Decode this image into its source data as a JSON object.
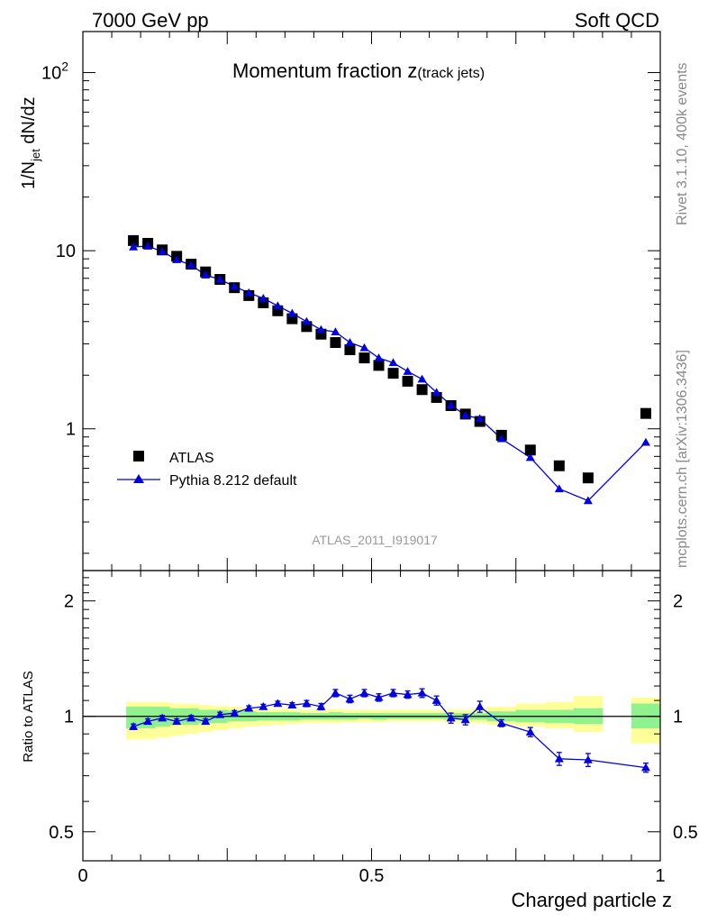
{
  "header": {
    "energy": "7000 GeV pp",
    "category": "Soft QCD"
  },
  "side_text": {
    "rivet": "Rivet 3.1.10,  400k events",
    "mcplots": "mcplots.cern.ch [arXiv:1306.3436]"
  },
  "colors": {
    "mc": "#0000e0",
    "data": "#000000",
    "band_inner": "#8ff28f",
    "band_outer": "#ffff99",
    "watermark": "#999999"
  },
  "chart_data": [
    {
      "type": "scatter",
      "title_main": "Momentum fraction ",
      "title_var": "z",
      "title_sub": "(track jets)",
      "analysis_id": "ATLAS_2011_I919017",
      "ylabel": "1/N_jet dN/dz",
      "yscale": "log",
      "ylim": [
        0.16,
        170
      ],
      "xlim": [
        0,
        1
      ],
      "y_ticks": [
        {
          "value": 1,
          "label": "1"
        },
        {
          "value": 10,
          "label": "10"
        },
        {
          "value": 100,
          "label": "10",
          "exp": "2"
        }
      ],
      "legend": {
        "position": "bottom-left",
        "data_label": "ATLAS",
        "mc_label": "Pythia 8.212 default"
      },
      "series": [
        {
          "name": "ATLAS",
          "marker": "square",
          "x": [
            0.0875,
            0.1125,
            0.1375,
            0.1625,
            0.1875,
            0.2125,
            0.2375,
            0.2625,
            0.2875,
            0.3125,
            0.3375,
            0.3625,
            0.3875,
            0.4125,
            0.4375,
            0.4625,
            0.4875,
            0.5125,
            0.5375,
            0.5625,
            0.5875,
            0.6125,
            0.6375,
            0.6625,
            0.6875,
            0.725,
            0.775,
            0.825,
            0.875,
            0.975
          ],
          "y": [
            11.4,
            11.0,
            10.1,
            9.3,
            8.4,
            7.6,
            6.9,
            6.2,
            5.6,
            5.1,
            4.6,
            4.15,
            3.75,
            3.4,
            3.05,
            2.78,
            2.5,
            2.27,
            2.05,
            1.85,
            1.66,
            1.5,
            1.35,
            1.21,
            1.1,
            0.92,
            0.76,
            0.62,
            0.53,
            1.22
          ]
        },
        {
          "name": "Pythia 8.212 default",
          "marker": "triangle",
          "x": [
            0.0875,
            0.1125,
            0.1375,
            0.1625,
            0.1875,
            0.2125,
            0.2375,
            0.2625,
            0.2875,
            0.3125,
            0.3375,
            0.3625,
            0.3875,
            0.4125,
            0.4375,
            0.4625,
            0.4875,
            0.5125,
            0.5375,
            0.5625,
            0.5875,
            0.6125,
            0.6375,
            0.6625,
            0.6875,
            0.725,
            0.775,
            0.825,
            0.875,
            0.975
          ],
          "y": [
            10.5,
            10.6,
            9.9,
            8.9,
            8.3,
            7.3,
            6.9,
            6.3,
            5.8,
            5.4,
            4.9,
            4.45,
            4.0,
            3.6,
            3.5,
            3.05,
            2.85,
            2.5,
            2.35,
            2.1,
            1.9,
            1.6,
            1.36,
            1.19,
            1.14,
            0.88,
            0.69,
            0.46,
            0.395,
            0.84
          ],
          "yerr_ratio": [
            0,
            0,
            0,
            0,
            0,
            0,
            0,
            0,
            0,
            0,
            0,
            0,
            0,
            0,
            0,
            0,
            0,
            0,
            0,
            0,
            0,
            0,
            0.02,
            0.02,
            0.02,
            0.015,
            0.02,
            0.03,
            0.03,
            0.015
          ]
        }
      ]
    },
    {
      "type": "scatter",
      "ylabel": "Ratio to ATLAS",
      "xlabel": "Charged particle z",
      "yscale": "log",
      "ylim": [
        0.42,
        2.4
      ],
      "xlim": [
        0,
        1
      ],
      "y_ticks": [
        {
          "value": 0.5,
          "label": "0.5"
        },
        {
          "value": 1,
          "label": "1"
        },
        {
          "value": 2,
          "label": "2"
        }
      ],
      "x_ticks": [
        {
          "value": 0,
          "label": "0"
        },
        {
          "value": 0.5,
          "label": "0.5"
        },
        {
          "value": 1,
          "label": "1"
        }
      ],
      "bands": {
        "bin_edges": [
          0.075,
          0.1,
          0.125,
          0.15,
          0.175,
          0.2,
          0.225,
          0.25,
          0.275,
          0.3,
          0.325,
          0.35,
          0.375,
          0.4,
          0.425,
          0.45,
          0.475,
          0.5,
          0.525,
          0.55,
          0.575,
          0.6,
          0.625,
          0.65,
          0.675,
          0.7,
          0.75,
          0.8,
          0.85,
          0.9,
          0.95,
          1.0
        ],
        "inner_low": [
          0.93,
          0.93,
          0.94,
          0.95,
          0.95,
          0.96,
          0.96,
          0.97,
          0.97,
          0.975,
          0.975,
          0.975,
          0.98,
          0.98,
          0.98,
          0.98,
          0.985,
          0.98,
          0.985,
          0.985,
          0.985,
          0.985,
          0.98,
          0.98,
          0.98,
          0.97,
          0.965,
          0.96,
          0.955,
          null,
          0.93
        ],
        "inner_high": [
          1.06,
          1.06,
          1.06,
          1.05,
          1.05,
          1.04,
          1.04,
          1.035,
          1.03,
          1.025,
          1.025,
          1.025,
          1.02,
          1.02,
          1.025,
          1.02,
          1.02,
          1.02,
          1.02,
          1.02,
          1.02,
          1.02,
          1.02,
          1.02,
          1.02,
          1.03,
          1.04,
          1.04,
          1.05,
          null,
          1.08
        ],
        "outer_low": [
          0.87,
          0.87,
          0.88,
          0.89,
          0.9,
          0.91,
          0.92,
          0.93,
          0.94,
          0.945,
          0.95,
          0.955,
          0.96,
          0.96,
          0.96,
          0.965,
          0.965,
          0.965,
          0.97,
          0.97,
          0.97,
          0.97,
          0.965,
          0.96,
          0.96,
          0.95,
          0.94,
          0.93,
          0.91,
          null,
          0.85
        ],
        "outer_high": [
          1.09,
          1.09,
          1.09,
          1.08,
          1.08,
          1.07,
          1.065,
          1.06,
          1.055,
          1.05,
          1.045,
          1.045,
          1.04,
          1.04,
          1.045,
          1.04,
          1.04,
          1.04,
          1.04,
          1.04,
          1.04,
          1.04,
          1.04,
          1.04,
          1.05,
          1.06,
          1.08,
          1.09,
          1.13,
          null,
          1.12
        ]
      },
      "series": [
        {
          "name": "Pythia 8.212 default / ATLAS",
          "x": [
            0.0875,
            0.1125,
            0.1375,
            0.1625,
            0.1875,
            0.2125,
            0.2375,
            0.2625,
            0.2875,
            0.3125,
            0.3375,
            0.3625,
            0.3875,
            0.4125,
            0.4375,
            0.4625,
            0.4875,
            0.5125,
            0.5375,
            0.5625,
            0.5875,
            0.6125,
            0.6375,
            0.6625,
            0.6875,
            0.725,
            0.775,
            0.825,
            0.875,
            0.975
          ],
          "y": [
            0.94,
            0.97,
            0.99,
            0.97,
            0.99,
            0.97,
            1.01,
            1.02,
            1.05,
            1.06,
            1.08,
            1.07,
            1.08,
            1.06,
            1.15,
            1.11,
            1.15,
            1.12,
            1.15,
            1.14,
            1.15,
            1.1,
            0.99,
            0.98,
            1.06,
            0.96,
            0.91,
            0.775,
            0.77,
            0.735
          ],
          "yerr": [
            0.015,
            0.015,
            0.015,
            0.015,
            0.015,
            0.015,
            0.015,
            0.015,
            0.015,
            0.015,
            0.015,
            0.015,
            0.02,
            0.02,
            0.025,
            0.025,
            0.025,
            0.025,
            0.025,
            0.025,
            0.03,
            0.03,
            0.03,
            0.03,
            0.035,
            0.02,
            0.025,
            0.03,
            0.03,
            0.02
          ]
        }
      ]
    }
  ]
}
